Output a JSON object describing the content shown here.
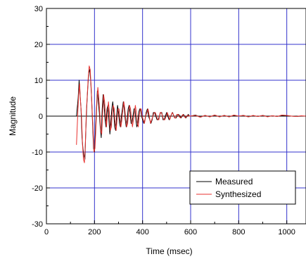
{
  "chart_data": {
    "type": "line",
    "title": "",
    "xlabel": "Time (msec)",
    "ylabel": "Magnitude",
    "xlim": [
      0,
      1080
    ],
    "ylim": [
      -30,
      30
    ],
    "xticks": [
      0,
      200,
      400,
      600,
      800,
      1000
    ],
    "yticks": [
      -30,
      -20,
      -10,
      0,
      10,
      20,
      30
    ],
    "xtick_labels": [
      "0",
      "200",
      "400",
      "600",
      "800",
      "1000"
    ],
    "ytick_labels": [
      "-30",
      "-20",
      "-10",
      "0",
      "10",
      "20",
      "30"
    ],
    "grid": true,
    "grid_color": "#3333cc",
    "legend_position": "bottom-right",
    "series": [
      {
        "name": "Measured",
        "color": "#000000",
        "x": [
          125,
          132,
          136,
          140,
          144,
          148,
          152,
          156,
          160,
          164,
          168,
          172,
          176,
          180,
          184,
          188,
          192,
          196,
          200,
          204,
          208,
          212,
          216,
          220,
          224,
          228,
          232,
          236,
          240,
          244,
          248,
          252,
          256,
          260,
          264,
          268,
          272,
          276,
          280,
          284,
          288,
          292,
          296,
          300,
          304,
          308,
          312,
          316,
          320,
          324,
          328,
          332,
          336,
          340,
          344,
          348,
          352,
          356,
          360,
          364,
          368,
          372,
          376,
          380,
          384,
          388,
          392,
          396,
          400,
          405,
          410,
          415,
          420,
          425,
          430,
          435,
          440,
          445,
          450,
          455,
          460,
          465,
          470,
          475,
          480,
          485,
          490,
          495,
          500,
          505,
          510,
          515,
          520,
          525,
          530,
          535,
          540,
          545,
          550,
          555,
          560,
          565,
          570,
          575,
          580,
          585,
          590,
          595,
          600,
          620,
          640,
          660,
          680,
          700,
          720,
          740,
          760,
          780,
          800,
          820,
          840,
          860,
          880,
          900,
          920,
          940,
          960,
          980,
          1000,
          1020,
          1040,
          1060,
          1080
        ],
        "y": [
          0,
          5,
          10,
          6,
          2,
          -6,
          -9,
          -11,
          -12,
          -4,
          3,
          8,
          12,
          13,
          10,
          5,
          -2,
          -9,
          -10,
          -4,
          2,
          7,
          4,
          1,
          -3,
          -6,
          2,
          6,
          3,
          -1,
          -3,
          2,
          3,
          -1,
          -5,
          -2,
          2,
          4,
          1,
          -3,
          -4,
          0,
          3,
          1,
          -2,
          -3,
          0,
          2,
          4,
          2,
          -1,
          -3,
          -1,
          2,
          3,
          1,
          -2,
          -2,
          0,
          2,
          2,
          -1,
          -3,
          -2,
          1,
          2,
          2,
          0,
          -1,
          -2,
          -1,
          1,
          2,
          0,
          -1,
          -2,
          -1,
          1,
          1,
          0,
          -1,
          -1,
          0,
          1,
          1,
          -1,
          -1,
          0,
          1,
          0,
          -1,
          -0.5,
          0.5,
          1,
          0,
          -0.5,
          -0.5,
          0.5,
          0.5,
          0,
          -0.5,
          0,
          0.5,
          0,
          -0.5,
          0,
          0.5,
          0,
          0,
          0.3,
          -0.3,
          0.2,
          -0.2,
          0.3,
          -0.2,
          0.2,
          -0.2,
          0.2,
          0,
          0.2,
          -0.2,
          0.1,
          -0.1,
          0.2,
          -0.1,
          0.1,
          -0.1,
          0.2,
          0.1,
          0,
          -0.1,
          0,
          0
        ]
      },
      {
        "name": "Synthesized",
        "color": "#e8312f",
        "x": [
          125,
          130,
          134,
          138,
          142,
          146,
          150,
          154,
          158,
          162,
          166,
          170,
          174,
          178,
          182,
          186,
          190,
          194,
          198,
          202,
          206,
          210,
          214,
          218,
          222,
          226,
          230,
          234,
          238,
          242,
          246,
          250,
          254,
          258,
          262,
          266,
          270,
          274,
          278,
          282,
          286,
          290,
          294,
          298,
          302,
          306,
          310,
          314,
          318,
          322,
          326,
          330,
          334,
          338,
          342,
          346,
          350,
          354,
          358,
          362,
          366,
          370,
          374,
          378,
          382,
          386,
          390,
          394,
          398,
          403,
          408,
          413,
          418,
          423,
          428,
          433,
          438,
          443,
          448,
          453,
          458,
          463,
          468,
          473,
          478,
          483,
          488,
          493,
          498,
          503,
          508,
          513,
          518,
          523,
          528,
          533,
          538,
          543,
          548,
          553,
          558,
          563,
          568,
          573,
          578,
          583,
          588,
          593,
          598,
          620,
          640,
          660,
          680,
          700,
          720,
          740,
          760,
          780,
          800,
          820,
          840,
          860,
          880,
          900,
          920,
          940,
          960,
          980,
          1000,
          1020,
          1040,
          1060,
          1080
        ],
        "y": [
          -8,
          0,
          6,
          9,
          4,
          0,
          -8,
          -12,
          -13,
          -8,
          1,
          6,
          11,
          14,
          13,
          8,
          2,
          -4,
          -10,
          -9,
          -3,
          4,
          8,
          5,
          1,
          -4,
          -5,
          1,
          6,
          4,
          0,
          -3,
          1,
          4,
          1,
          -4,
          -3,
          1,
          3,
          2,
          -2,
          -4,
          -1,
          2,
          2,
          -1,
          -3,
          -1,
          2,
          4,
          2,
          -1,
          -3,
          -2,
          1,
          3,
          2,
          -1,
          -3,
          -1,
          1,
          3,
          1,
          -2,
          -3,
          0,
          2,
          2,
          0,
          -1,
          -2,
          0,
          1,
          2,
          0,
          -2,
          -1,
          0,
          1,
          1,
          0,
          -1,
          -1,
          1,
          1,
          0,
          -1,
          -1,
          0,
          1,
          0,
          -1,
          0,
          1,
          0.5,
          -0.5,
          -0.5,
          0.5,
          0.5,
          -0.2,
          -0.5,
          0,
          0.5,
          0,
          -0.5,
          0,
          0.3,
          0,
          0,
          0.2,
          -0.3,
          0.2,
          -0.2,
          0.3,
          -0.2,
          0.2,
          -0.2,
          0.3,
          0,
          0.2,
          -0.2,
          0.2,
          -0.1,
          0.2,
          -0.2,
          0.1,
          -0.1,
          0.3,
          0.2,
          0,
          -0.1,
          0.1,
          0
        ]
      }
    ]
  }
}
